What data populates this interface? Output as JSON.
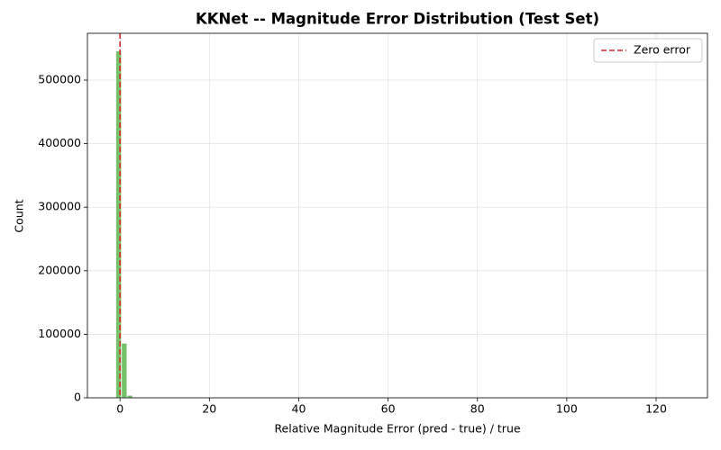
{
  "chart_data": {
    "type": "histogram",
    "title": "KKNet -- Magnitude Error Distribution (Test Set)",
    "xlabel": "Relative Magnitude Error  (pred - true) / true",
    "ylabel": "Count",
    "bins": [
      -0.95,
      0.312,
      1.574,
      2.836,
      4.098,
      5.36,
      6.622,
      7.884,
      9.146,
      10.408,
      11.67,
      12.932,
      14.194,
      15.456,
      16.718,
      17.98,
      19.242,
      20.504,
      21.766,
      23.028,
      24.29,
      25.552,
      26.814,
      28.076,
      29.338,
      30.6,
      31.862,
      33.124,
      34.386,
      35.648,
      36.91,
      38.172,
      39.434,
      40.696,
      41.958,
      43.22,
      44.482,
      45.744,
      47.006,
      48.268,
      49.53,
      50.792,
      52.054,
      53.316,
      54.578,
      55.84,
      57.102,
      58.364,
      59.626,
      60.888,
      62.15,
      63.412,
      64.674,
      65.936,
      67.198,
      68.46,
      69.722,
      70.984,
      72.246,
      73.508,
      74.77,
      76.032,
      77.294,
      78.556,
      79.818,
      81.08,
      82.342,
      83.604,
      84.866,
      86.128,
      87.39,
      88.652,
      89.914,
      91.176,
      92.438,
      93.7,
      94.962,
      96.224,
      97.486,
      98.748,
      100.01,
      101.272,
      102.534,
      103.796,
      105.058,
      106.32,
      107.582,
      108.844,
      110.106,
      111.368,
      112.63,
      113.892,
      115.154,
      116.416,
      117.678,
      118.94,
      120.202,
      121.464,
      122.726,
      123.988,
      125.25
    ],
    "values": [
      546000,
      86000,
      4000,
      0,
      0,
      0,
      0,
      0,
      0,
      0,
      0,
      0,
      0,
      0,
      0,
      0,
      0,
      0,
      0,
      0,
      0,
      0,
      0,
      0,
      0,
      0,
      0,
      0,
      0,
      0,
      0,
      0,
      0,
      0,
      0,
      0,
      0,
      0,
      0,
      0,
      0,
      0,
      0,
      0,
      0,
      0,
      0,
      0,
      0,
      0,
      0,
      0,
      0,
      0,
      0,
      0,
      0,
      0,
      0,
      0,
      0,
      0,
      0,
      0,
      0,
      0,
      0,
      0,
      0,
      0,
      0,
      0,
      0,
      0,
      0,
      0,
      0,
      0,
      0,
      0,
      0,
      0,
      0,
      0,
      0,
      0,
      0,
      0,
      0,
      0,
      0,
      0,
      0,
      0,
      0,
      0,
      0,
      0,
      0,
      1
    ],
    "color": "#76c26b",
    "xlim": [
      -7.3,
      131.5
    ],
    "xticks": [
      0,
      20,
      40,
      60,
      80,
      100,
      120
    ],
    "ylim": [
      0,
      573700
    ],
    "yticks": [
      0,
      100000,
      200000,
      300000,
      400000,
      500000
    ],
    "grid": true,
    "reference_line": {
      "x": 0,
      "name": "Zero error",
      "color": "#d62728"
    },
    "legend": "upper right"
  }
}
